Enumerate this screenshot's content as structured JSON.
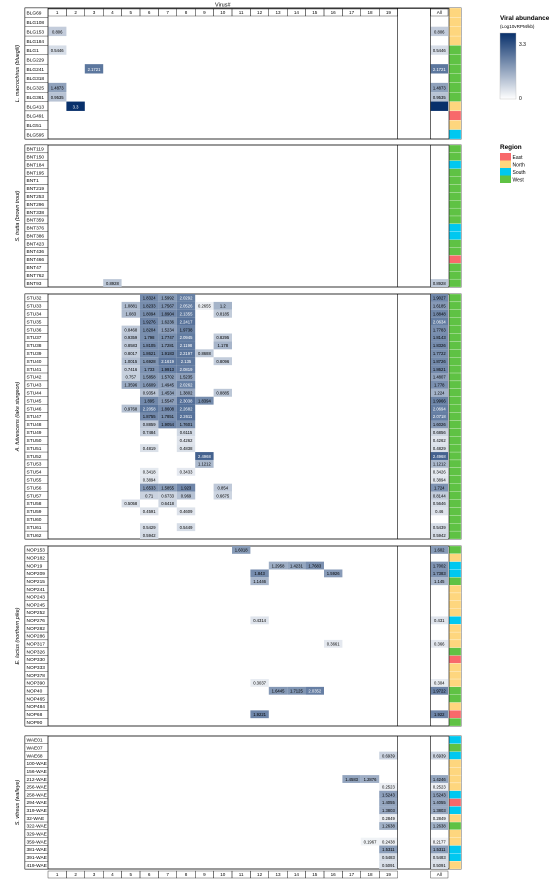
{
  "chart_data": {
    "type": "heatmap",
    "title": "Virus#",
    "columns": [
      "1",
      "2",
      "3",
      "4",
      "5",
      "6",
      "7",
      "8",
      "9",
      "10",
      "11",
      "12",
      "13",
      "14",
      "15",
      "16",
      "17",
      "18",
      "19",
      "All"
    ],
    "legend": {
      "abundance_title": "Viral abundance",
      "abundance_subtitle": "(Log10vRPM/kb)",
      "abundance_max_label": "3.3",
      "abundance_min_label": "0",
      "abundance_max": 3.3,
      "color_low": "#ffffff",
      "color_high": "#08306b",
      "region_title": "Region",
      "regions": [
        {
          "name": "East",
          "color": "#f8696b"
        },
        {
          "name": "North",
          "color": "#fed67e"
        },
        {
          "name": "South",
          "color": "#00c8f0"
        },
        {
          "name": "West",
          "color": "#5fc244"
        }
      ]
    },
    "species": [
      {
        "label": "L. macrochirus (bluegill)",
        "rows": [
          {
            "id": "BLG69",
            "region": "North",
            "cells": {}
          },
          {
            "id": "BLG108",
            "region": "North",
            "cells": {}
          },
          {
            "id": "BLG153",
            "region": "North",
            "cells": {
              "1": 0.806,
              "All": 0.806
            }
          },
          {
            "id": "BLG184",
            "region": "North",
            "cells": {}
          },
          {
            "id": "BLG1",
            "region": "West",
            "cells": {
              "1": 0.5446,
              "All": 0.5446
            }
          },
          {
            "id": "BLG229",
            "region": "West",
            "cells": {}
          },
          {
            "id": "BLG241",
            "region": "West",
            "cells": {
              "3": 2.1721,
              "All": 2.1721
            }
          },
          {
            "id": "BLG318",
            "region": "West",
            "cells": {}
          },
          {
            "id": "BLG325",
            "region": "West",
            "cells": {
              "1": 1.4873,
              "All": 1.4873
            }
          },
          {
            "id": "BLG361",
            "region": "West",
            "cells": {
              "1": 0.9535,
              "All": 0.9535
            }
          },
          {
            "id": "BLG413",
            "region": "North",
            "cells": {
              "2": 3.3,
              "All": 3.3
            }
          },
          {
            "id": "BLG491",
            "region": "East",
            "cells": {}
          },
          {
            "id": "BLG51",
            "region": "North",
            "cells": {}
          },
          {
            "id": "BLG595",
            "region": "South",
            "cells": {}
          }
        ]
      },
      {
        "label": "S. trutta (brown trout)",
        "rows": [
          {
            "id": "BNT119",
            "region": "West",
            "cells": {}
          },
          {
            "id": "BNT150",
            "region": "West",
            "cells": {}
          },
          {
            "id": "BNT184",
            "region": "South",
            "cells": {}
          },
          {
            "id": "BNT195",
            "region": "West",
            "cells": {}
          },
          {
            "id": "BNT1",
            "region": "West",
            "cells": {}
          },
          {
            "id": "BNT219",
            "region": "West",
            "cells": {}
          },
          {
            "id": "BNT253",
            "region": "West",
            "cells": {}
          },
          {
            "id": "BNT296",
            "region": "West",
            "cells": {}
          },
          {
            "id": "BNT338",
            "region": "West",
            "cells": {}
          },
          {
            "id": "BNT359",
            "region": "West",
            "cells": {}
          },
          {
            "id": "BNT376",
            "region": "South",
            "cells": {}
          },
          {
            "id": "BNT386",
            "region": "South",
            "cells": {}
          },
          {
            "id": "BNT423",
            "region": "West",
            "cells": {}
          },
          {
            "id": "BNT436",
            "region": "West",
            "cells": {}
          },
          {
            "id": "BNT466",
            "region": "East",
            "cells": {}
          },
          {
            "id": "BNT47",
            "region": "West",
            "cells": {}
          },
          {
            "id": "BNT762",
            "region": "West",
            "cells": {}
          },
          {
            "id": "BNT93",
            "region": "West",
            "cells": {
              "4": 0.8928,
              "All": 0.8928
            }
          }
        ]
      },
      {
        "label": "A. fulvescens (lake sturgeon)",
        "rows": [
          {
            "id": "STU32",
            "region": "West",
            "cells": {
              "6": 1.8324,
              "7": 1.5992,
              "8": 2.0292,
              "All": 1.9027
            }
          },
          {
            "id": "STU33",
            "region": "West",
            "cells": {
              "5": 1.0881,
              "6": 1.8233,
              "7": 1.7567,
              "8": 2.0526,
              "9": 0.2655,
              "10": 1.2,
              "All": 1.6185
            }
          },
          {
            "id": "STU34",
            "region": "West",
            "cells": {
              "5": 1.083,
              "6": 1.8094,
              "7": 1.8904,
              "8": 2.1355,
              "10": 0.8185,
              "All": 1.8848
            }
          },
          {
            "id": "STU35",
            "region": "West",
            "cells": {
              "6": 1.9276,
              "7": 1.6236,
              "8": 2.2417,
              "All": 2.0634
            }
          },
          {
            "id": "STU36",
            "region": "West",
            "cells": {
              "5": 0.8468,
              "6": 1.8204,
              "7": 1.5234,
              "8": 1.9738,
              "All": 1.7783
            }
          },
          {
            "id": "STU37",
            "region": "West",
            "cells": {
              "5": 0.9359,
              "6": 1.798,
              "7": 1.7747,
              "8": 2.0945,
              "10": 0.8295,
              "All": 1.8143
            }
          },
          {
            "id": "STU38",
            "region": "West",
            "cells": {
              "5": 0.8583,
              "6": 1.8105,
              "7": 1.7281,
              "8": 2.1198,
              "10": 1.178,
              "All": 1.8326
            }
          },
          {
            "id": "STU39",
            "region": "West",
            "cells": {
              "5": 0.8017,
              "6": 1.8621,
              "7": 1.9183,
              "8": 2.2197,
              "9": 0.8688,
              "All": 1.7722
            }
          },
          {
            "id": "STU40",
            "region": "West",
            "cells": {
              "5": 1.0015,
              "6": 1.6928,
              "7": 2.1619,
              "8": 2.135,
              "10": 0.8096,
              "All": 1.8726
            }
          },
          {
            "id": "STU41",
            "region": "West",
            "cells": {
              "5": 0.7416,
              "6": 1.733,
              "7": 1.9913,
              "8": 2.0819,
              "All": 1.8621
            }
          },
          {
            "id": "STU42",
            "region": "West",
            "cells": {
              "5": 0.757,
              "6": 1.5858,
              "7": 1.5702,
              "8": 1.5235,
              "All": 1.4807
            }
          },
          {
            "id": "STU43",
            "region": "West",
            "cells": {
              "5": 1.3596,
              "6": 1.6609,
              "7": 1.4945,
              "8": 2.0262,
              "All": 1.778
            }
          },
          {
            "id": "STU44",
            "region": "West",
            "cells": {
              "6": 0.9354,
              "7": 1.4534,
              "8": 1.3802,
              "10": 0.8885,
              "All": 1.224
            }
          },
          {
            "id": "STU45",
            "region": "West",
            "cells": {
              "6": 1.895,
              "7": 1.5547,
              "8": 2.3038,
              "9": 1.8394,
              "All": 1.9966
            }
          },
          {
            "id": "STU46",
            "region": "West",
            "cells": {
              "5": 0.9768,
              "6": 2.2058,
              "7": 1.8608,
              "8": 2.2682,
              "All": 2.0694
            }
          },
          {
            "id": "STU47",
            "region": "West",
            "cells": {
              "6": 1.8755,
              "7": 1.7851,
              "8": 2.2611,
              "All": 2.0718
            }
          },
          {
            "id": "STU48",
            "region": "West",
            "cells": {
              "6": 0.8859,
              "7": 1.9054,
              "8": 1.7601,
              "All": 1.6026
            }
          },
          {
            "id": "STU49",
            "region": "West",
            "cells": {
              "6": 0.7484,
              "8": 0.6115,
              "All": 0.6856
            }
          },
          {
            "id": "STU50",
            "region": "West",
            "cells": {
              "8": 0.4262,
              "All": 0.4262
            }
          },
          {
            "id": "STU51",
            "region": "West",
            "cells": {
              "6": 0.4819,
              "8": 0.4838,
              "All": 0.4829
            }
          },
          {
            "id": "STU52",
            "region": "West",
            "cells": {
              "9": 2.4968,
              "All": 2.4968
            }
          },
          {
            "id": "STU53",
            "region": "West",
            "cells": {
              "9": 1.1212,
              "All": 1.1212
            }
          },
          {
            "id": "STU54",
            "region": "West",
            "cells": {
              "6": 0.3418,
              "8": 0.3433,
              "All": 0.3426
            }
          },
          {
            "id": "STU55",
            "region": "West",
            "cells": {
              "6": 0.3894,
              "All": 0.3894
            }
          },
          {
            "id": "STU56",
            "region": "West",
            "cells": {
              "6": 1.6533,
              "7": 1.5855,
              "8": 1.923,
              "10": 0.854,
              "All": 1.724
            }
          },
          {
            "id": "STU57",
            "region": "West",
            "cells": {
              "6": 0.71,
              "7": 0.6733,
              "8": 0.969,
              "10": 0.6675,
              "All": 0.8144
            }
          },
          {
            "id": "STU58",
            "region": "West",
            "cells": {
              "5": 0.5058,
              "7": 0.6418,
              "All": 0.5646
            }
          },
          {
            "id": "STU59",
            "region": "West",
            "cells": {
              "6": 0.4591,
              "8": 0.4609,
              "All": 0.46
            }
          },
          {
            "id": "STU60",
            "region": "West",
            "cells": {}
          },
          {
            "id": "STU61",
            "region": "West",
            "cells": {
              "6": 0.5429,
              "8": 0.5449,
              "All": 0.5439
            }
          },
          {
            "id": "STU62",
            "region": "West",
            "cells": {
              "6": 0.5942,
              "All": 0.5942
            }
          }
        ]
      },
      {
        "label": "E. lucius (northern pike)",
        "rows": [
          {
            "id": "NOP153",
            "region": "West",
            "cells": {
              "11": 1.6018,
              "All": 1.602
            }
          },
          {
            "id": "NOP182",
            "region": "North",
            "cells": {}
          },
          {
            "id": "NOP19",
            "region": "South",
            "cells": {
              "13": 1.2958,
              "14": 1.4231,
              "15": 1.7683,
              "All": 1.7002
            }
          },
          {
            "id": "NOP209",
            "region": "South",
            "cells": {
              "12": 1.843,
              "16": 1.5926,
              "All": 1.7383
            }
          },
          {
            "id": "NOP215",
            "region": "West",
            "cells": {
              "12": 1.1446,
              "All": 1.145
            }
          },
          {
            "id": "NOP241",
            "region": "North",
            "cells": {}
          },
          {
            "id": "NOP243",
            "region": "North",
            "cells": {}
          },
          {
            "id": "NOP245",
            "region": "North",
            "cells": {}
          },
          {
            "id": "NOP252",
            "region": "North",
            "cells": {}
          },
          {
            "id": "NOP276",
            "region": "South",
            "cells": {
              "12": 0.4314,
              "All": 0.431
            }
          },
          {
            "id": "NOP282",
            "region": "North",
            "cells": {}
          },
          {
            "id": "NOP286",
            "region": "North",
            "cells": {}
          },
          {
            "id": "NOP317",
            "region": "North",
            "cells": {
              "16": 0.3661,
              "All": 0.366
            }
          },
          {
            "id": "NOP326",
            "region": "West",
            "cells": {}
          },
          {
            "id": "NOP330",
            "region": "East",
            "cells": {}
          },
          {
            "id": "NOP333",
            "region": "North",
            "cells": {}
          },
          {
            "id": "NOP378",
            "region": "North",
            "cells": {}
          },
          {
            "id": "NOP390",
            "region": "North",
            "cells": {
              "12": 0.3037,
              "All": 0.304
            }
          },
          {
            "id": "NOP40",
            "region": "West",
            "cells": {
              "13": 1.6445,
              "14": 1.7125,
              "15": 2.0352,
              "All": 1.9722
            }
          },
          {
            "id": "NOP465",
            "region": "West",
            "cells": {}
          },
          {
            "id": "NOP484",
            "region": "North",
            "cells": {}
          },
          {
            "id": "NOP68",
            "region": "East",
            "cells": {
              "12": 1.9221,
              "All": 1.922
            }
          },
          {
            "id": "NOP90",
            "region": "West",
            "cells": {}
          }
        ]
      },
      {
        "label": "S. vitreus (walleye)",
        "rows": [
          {
            "id": "WAE01",
            "region": "South",
            "cells": {}
          },
          {
            "id": "WAE07",
            "region": "West",
            "cells": {}
          },
          {
            "id": "WAE68",
            "region": "South",
            "cells": {
              "19": 0.6939,
              "All": 0.6939
            }
          },
          {
            "id": "100-WAE",
            "region": "North",
            "cells": {}
          },
          {
            "id": "156-WAE",
            "region": "North",
            "cells": {}
          },
          {
            "id": "212-WAE",
            "region": "North",
            "cells": {
              "17": 1.4583,
              "18": 1.2876,
              "All": 1.4246
            }
          },
          {
            "id": "256-WAE",
            "region": "North",
            "cells": {
              "19": 0.2523,
              "All": 0.2523
            }
          },
          {
            "id": "258-WAE",
            "region": "South",
            "cells": {
              "19": 1.5243,
              "All": 1.5243
            }
          },
          {
            "id": "294-WAE",
            "region": "East",
            "cells": {
              "19": 1.4055,
              "All": 1.4055
            }
          },
          {
            "id": "319-WAE",
            "region": "South",
            "cells": {
              "19": 1.3803,
              "All": 1.3803
            }
          },
          {
            "id": "32-WAE",
            "region": "North",
            "cells": {
              "19": 0.2849,
              "All": 0.2849
            }
          },
          {
            "id": "322-WAE",
            "region": "West",
            "cells": {
              "19": 1.2638,
              "All": 1.2638
            }
          },
          {
            "id": "329-WAE",
            "region": "North",
            "cells": {}
          },
          {
            "id": "359-WAE",
            "region": "North",
            "cells": {
              "18": 0.1967,
              "19": 0.2438,
              "All": 0.2177
            }
          },
          {
            "id": "381-WAE",
            "region": "South",
            "cells": {
              "19": 1.5311,
              "All": 1.5311
            }
          },
          {
            "id": "391-WAE",
            "region": "South",
            "cells": {
              "19": 0.5483,
              "All": 0.5483
            }
          },
          {
            "id": "419-WAE",
            "region": "North",
            "cells": {
              "19": 0.5091,
              "All": 0.5091
            }
          }
        ]
      }
    ]
  }
}
